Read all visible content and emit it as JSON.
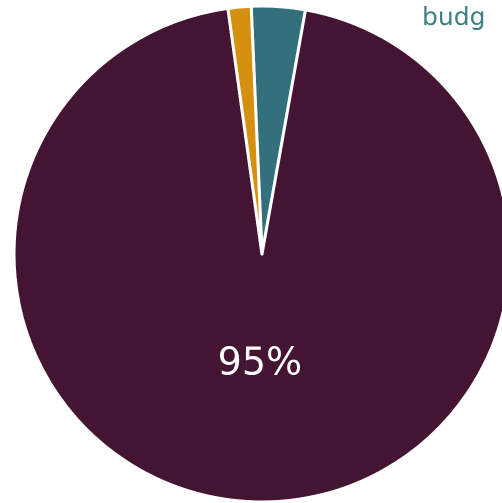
{
  "chart_data": {
    "type": "pie",
    "title": "",
    "start_angle_deg": -2.5,
    "direction": "clockwise",
    "slices": [
      {
        "name": "",
        "value": 3.5,
        "color": "#33707b",
        "label": ""
      },
      {
        "name": "",
        "value": 95,
        "color": "#441533",
        "label": "95%"
      },
      {
        "name": "",
        "value": 1.5,
        "color": "#d4900e",
        "label": ""
      }
    ],
    "legend": {
      "placement": "top-right",
      "entries": [
        {
          "text": "budg",
          "color": "#3f8088"
        }
      ]
    }
  }
}
